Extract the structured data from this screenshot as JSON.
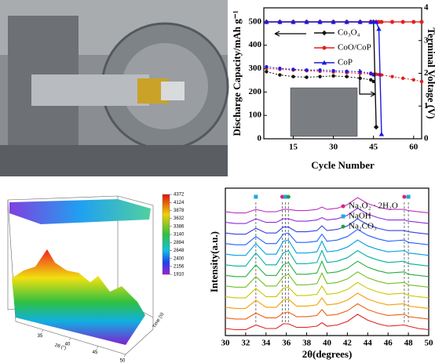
{
  "chart_data": [
    {
      "type": "line",
      "xlabel": "Cycle Number",
      "ylabel": "Discharge Capacity/mAh g⁻¹",
      "y2label": "Terminal Voltage (V)",
      "x": [
        5,
        10,
        15,
        20,
        25,
        30,
        35,
        40,
        44,
        45,
        46,
        47,
        48,
        52,
        56,
        60,
        63
      ],
      "xlim": [
        4,
        63
      ],
      "xticks": [
        15,
        30,
        45,
        60
      ],
      "ylim": [
        0,
        560
      ],
      "yticks": [
        0,
        100,
        200,
        300,
        400,
        500
      ],
      "y2lim": [
        0,
        4
      ],
      "y2ticks": [
        0,
        1,
        2,
        3,
        4
      ],
      "series": [
        {
          "name": "Co₃O₄",
          "color": "#111111",
          "marker": "diamond",
          "values": [
            500,
            500,
            500,
            500,
            500,
            500,
            500,
            500,
            500,
            500,
            50,
            null,
            null,
            null,
            null,
            null,
            null
          ]
        },
        {
          "name": "CoO/CoP",
          "color": "#e02020",
          "marker": "circle",
          "values": [
            500,
            500,
            500,
            500,
            500,
            500,
            500,
            500,
            500,
            500,
            500,
            500,
            500,
            500,
            500,
            500,
            500
          ]
        },
        {
          "name": "CoP",
          "color": "#1a1adf",
          "marker": "triangle",
          "values": [
            500,
            500,
            500,
            500,
            500,
            500,
            500,
            500,
            500,
            500,
            500,
            470,
            20,
            null,
            null,
            null,
            null
          ]
        }
      ],
      "y2_series": [
        {
          "color": "#111111",
          "axis": "y2",
          "values": [
            2.05,
            1.95,
            1.9,
            1.88,
            1.9,
            1.92,
            1.9,
            1.85,
            1.8,
            1.75,
            null,
            null,
            null,
            null,
            null,
            null,
            null
          ]
        },
        {
          "color": "#e02020",
          "axis": "y2",
          "values": [
            2.15,
            2.12,
            2.1,
            2.08,
            2.06,
            2.04,
            2.02,
            2.0,
            1.98,
            1.97,
            1.97,
            1.96,
            1.95,
            1.9,
            1.85,
            1.8,
            1.75
          ]
        },
        {
          "color": "#1a1adf",
          "axis": "y2",
          "values": [
            2.2,
            2.15,
            2.12,
            2.1,
            2.1,
            2.08,
            2.06,
            2.05,
            2.0,
            1.95,
            null,
            null,
            null,
            null,
            null,
            null,
            null
          ]
        }
      ]
    },
    {
      "type": "surface",
      "xlabel": "2θ (°)",
      "ylabel": "Time (s)",
      "xlim": [
        30,
        50
      ],
      "xticks": [
        35,
        40,
        45,
        50
      ],
      "clim": [
        1910,
        4372
      ],
      "cticks": [
        1910,
        2156,
        2400,
        2648,
        2894,
        3140,
        3386,
        3632,
        3878,
        4124,
        4372
      ]
    },
    {
      "type": "xrd",
      "xlabel": "2θ(degrees)",
      "ylabel": "Intensity(a.u.)",
      "xlim": [
        30,
        50
      ],
      "xticks": [
        30,
        32,
        34,
        36,
        38,
        40,
        42,
        44,
        46,
        48,
        50
      ],
      "ylim": [
        0,
        125
      ],
      "x": [
        30,
        31,
        32,
        33,
        34,
        35,
        35.7,
        36.2,
        37,
        38,
        39,
        39.5,
        40,
        41,
        42,
        43,
        44,
        45,
        46,
        47.6,
        48,
        49,
        50
      ],
      "series": [
        {
          "color": "#e02020",
          "values": [
            6,
            5,
            5,
            9,
            6,
            6,
            10,
            10,
            7,
            7,
            8,
            11,
            8,
            9,
            12,
            18,
            13,
            10,
            8,
            9,
            8,
            6,
            5
          ]
        },
        {
          "color": "#f06010",
          "values": [
            15,
            14,
            14,
            19,
            15,
            15,
            19,
            20,
            16,
            16,
            17,
            22,
            17,
            18,
            21,
            27,
            22,
            19,
            17,
            18,
            16,
            15,
            14
          ]
        },
        {
          "color": "#f0a000",
          "values": [
            24,
            23,
            23,
            30,
            24,
            24,
            30,
            31,
            25,
            25,
            26,
            32,
            26,
            27,
            30,
            36,
            31,
            28,
            26,
            27,
            25,
            24,
            23
          ]
        },
        {
          "color": "#c8c800",
          "values": [
            33,
            32,
            32,
            40,
            33,
            33,
            40,
            41,
            34,
            34,
            35,
            42,
            35,
            36,
            39,
            45,
            40,
            37,
            35,
            36,
            34,
            33,
            32
          ]
        },
        {
          "color": "#70c020",
          "values": [
            42,
            41,
            41,
            50,
            42,
            42,
            50,
            52,
            43,
            43,
            44,
            53,
            44,
            45,
            48,
            54,
            49,
            46,
            44,
            45,
            43,
            42,
            41
          ]
        },
        {
          "color": "#20b040",
          "values": [
            51,
            50,
            50,
            60,
            51,
            51,
            60,
            62,
            52,
            52,
            53,
            63,
            53,
            54,
            57,
            63,
            58,
            55,
            53,
            54,
            52,
            51,
            50
          ]
        },
        {
          "color": "#00b0a0",
          "values": [
            60,
            59,
            59,
            70,
            60,
            60,
            70,
            72,
            61,
            61,
            62,
            72,
            62,
            63,
            66,
            72,
            67,
            64,
            62,
            63,
            61,
            60,
            59
          ]
        },
        {
          "color": "#00a0e0",
          "values": [
            69,
            68,
            68,
            78,
            69,
            69,
            80,
            81,
            70,
            70,
            71,
            80,
            71,
            72,
            75,
            81,
            76,
            73,
            71,
            72,
            70,
            69,
            68
          ]
        },
        {
          "color": "#2060ff",
          "values": [
            78,
            77,
            77,
            84,
            78,
            78,
            86,
            87,
            79,
            79,
            80,
            86,
            80,
            81,
            84,
            90,
            85,
            82,
            80,
            81,
            79,
            78,
            77
          ]
        },
        {
          "color": "#3040e0",
          "values": [
            87,
            86,
            86,
            91,
            87,
            87,
            92,
            92,
            88,
            88,
            89,
            93,
            89,
            90,
            93,
            99,
            94,
            91,
            89,
            89,
            88,
            87,
            86
          ]
        },
        {
          "color": "#8a2be2",
          "values": [
            96,
            95,
            95,
            99,
            96,
            96,
            99,
            99,
            97,
            97,
            98,
            100,
            98,
            99,
            102,
            108,
            103,
            100,
            98,
            98,
            97,
            96,
            95
          ]
        },
        {
          "color": "#c030c0",
          "values": [
            105,
            104,
            104,
            107,
            105,
            105,
            107,
            107,
            106,
            106,
            107,
            109,
            107,
            108,
            111,
            117,
            112,
            109,
            107,
            107,
            106,
            105,
            104
          ]
        }
      ],
      "phases": [
        {
          "name": "Na₂O₂ · 2H₂O",
          "color": "#e0207a",
          "marker": "circle"
        },
        {
          "name": "NaOH",
          "color": "#20a8e0",
          "marker": "square"
        },
        {
          "name": "Na₂CO₃",
          "color": "#20a040",
          "marker": "circle"
        }
      ],
      "phase_lines": [
        {
          "x": 33,
          "phase": 1
        },
        {
          "x": 35.6,
          "phase": 0
        },
        {
          "x": 35.9,
          "phase": 1
        },
        {
          "x": 36.2,
          "phase": 2
        },
        {
          "x": 47.6,
          "phase": 0
        },
        {
          "x": 48,
          "phase": 1
        }
      ]
    }
  ]
}
